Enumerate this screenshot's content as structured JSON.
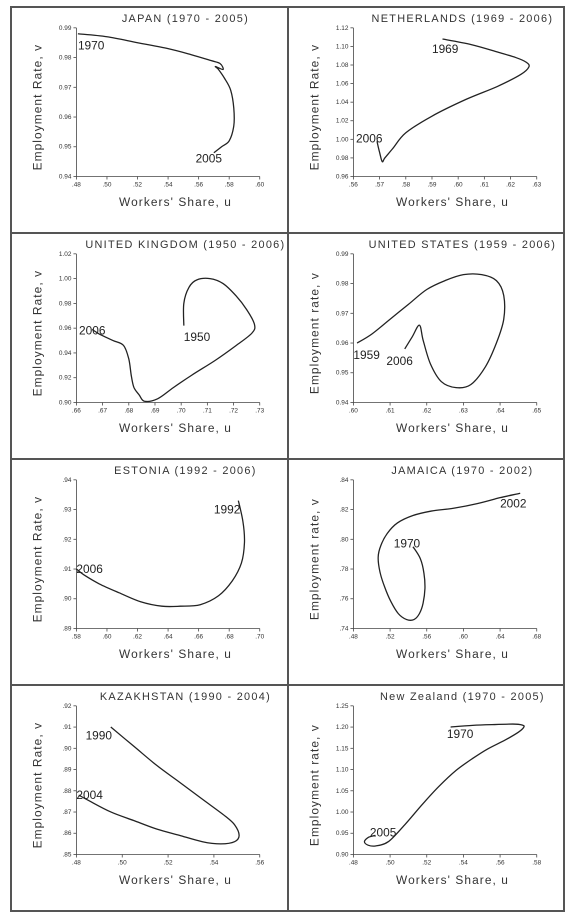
{
  "chart_data": [
    {
      "type": "line",
      "title": "JAPAN (1970 - 2005)",
      "xlabel": "Workers' Share, u",
      "ylabel": "Employment Rate, v",
      "xlim": [
        0.48,
        0.6
      ],
      "ylim": [
        0.94,
        0.99
      ],
      "xticks": [
        {
          "v": 0.48,
          "label": ".48"
        },
        {
          "v": 0.5,
          "label": ".50"
        },
        {
          "v": 0.52,
          "label": ".52"
        },
        {
          "v": 0.54,
          "label": ".54"
        },
        {
          "v": 0.56,
          "label": ".56"
        },
        {
          "v": 0.58,
          "label": ".58"
        },
        {
          "v": 0.6,
          "label": ".60"
        }
      ],
      "yticks": [
        {
          "v": 0.94,
          "label": "0.94"
        },
        {
          "v": 0.95,
          "label": "0.95"
        },
        {
          "v": 0.96,
          "label": "0.96"
        },
        {
          "v": 0.97,
          "label": "0.97"
        },
        {
          "v": 0.98,
          "label": "0.98"
        },
        {
          "v": 0.99,
          "label": "0.99"
        }
      ],
      "series": [
        {
          "x": [
            0.481,
            0.5,
            0.52,
            0.54,
            0.555,
            0.568,
            0.574,
            0.576,
            0.571,
            0.573,
            0.577,
            0.581,
            0.583,
            0.583,
            0.58,
            0.575,
            0.57
          ],
          "y": [
            0.988,
            0.987,
            0.985,
            0.983,
            0.981,
            0.979,
            0.978,
            0.976,
            0.977,
            0.976,
            0.973,
            0.969,
            0.963,
            0.957,
            0.952,
            0.95,
            0.948
          ]
        }
      ],
      "annotations": [
        {
          "text": "1970",
          "x": 0.481,
          "y": 0.984
        },
        {
          "text": "2005",
          "x": 0.558,
          "y": 0.946
        }
      ]
    },
    {
      "type": "line",
      "title": "NETHERLANDS (1969 - 2006)",
      "xlabel": "Workers' Share, u",
      "ylabel": "Employment Rate, v",
      "xlim": [
        0.56,
        0.63
      ],
      "ylim": [
        0.96,
        1.12
      ],
      "xticks": [
        {
          "v": 0.56,
          "label": ".56"
        },
        {
          "v": 0.57,
          "label": ".57"
        },
        {
          "v": 0.58,
          "label": ".58"
        },
        {
          "v": 0.59,
          "label": ".59"
        },
        {
          "v": 0.6,
          "label": ".60"
        },
        {
          "v": 0.61,
          "label": ".61"
        },
        {
          "v": 0.62,
          "label": ".62"
        },
        {
          "v": 0.63,
          "label": ".63"
        }
      ],
      "yticks": [
        {
          "v": 0.96,
          "label": "0.96"
        },
        {
          "v": 0.98,
          "label": "0.98"
        },
        {
          "v": 1.0,
          "label": "1.00"
        },
        {
          "v": 1.02,
          "label": "1.02"
        },
        {
          "v": 1.04,
          "label": "1.04"
        },
        {
          "v": 1.06,
          "label": "1.06"
        },
        {
          "v": 1.08,
          "label": "1.08"
        },
        {
          "v": 1.1,
          "label": "1.10"
        },
        {
          "v": 1.12,
          "label": "1.12"
        }
      ],
      "series": [
        {
          "x": [
            0.594,
            0.605,
            0.615,
            0.622,
            0.626,
            0.627,
            0.624,
            0.615,
            0.603,
            0.59,
            0.58,
            0.575,
            0.572,
            0.571,
            0.57,
            0.569
          ],
          "y": [
            1.108,
            1.102,
            1.094,
            1.088,
            1.083,
            1.078,
            1.07,
            1.057,
            1.043,
            1.025,
            1.007,
            0.99,
            0.98,
            0.976,
            0.986,
            0.998
          ]
        }
      ],
      "annotations": [
        {
          "text": "1969",
          "x": 0.59,
          "y": 1.097
        },
        {
          "text": "2006",
          "x": 0.561,
          "y": 1.001
        }
      ]
    },
    {
      "type": "line",
      "title": "UNITED KINGDOM (1950 - 2006)",
      "xlabel": "Workers' Share, u",
      "ylabel": "Employment Rate, v",
      "xlim": [
        0.66,
        0.73
      ],
      "ylim": [
        0.9,
        1.02
      ],
      "xticks": [
        {
          "v": 0.66,
          "label": ".66"
        },
        {
          "v": 0.67,
          "label": ".67"
        },
        {
          "v": 0.68,
          "label": ".68"
        },
        {
          "v": 0.69,
          "label": ".69"
        },
        {
          "v": 0.7,
          "label": ".70"
        },
        {
          "v": 0.71,
          "label": ".71"
        },
        {
          "v": 0.72,
          "label": ".72"
        },
        {
          "v": 0.73,
          "label": ".73"
        }
      ],
      "yticks": [
        {
          "v": 0.9,
          "label": "0.90"
        },
        {
          "v": 0.92,
          "label": "0.92"
        },
        {
          "v": 0.94,
          "label": "0.94"
        },
        {
          "v": 0.96,
          "label": "0.96"
        },
        {
          "v": 0.98,
          "label": "0.98"
        },
        {
          "v": 1.0,
          "label": "1.00"
        },
        {
          "v": 1.02,
          "label": "1.02"
        }
      ],
      "series": [
        {
          "x": [
            0.701,
            0.701,
            0.703,
            0.706,
            0.711,
            0.716,
            0.721,
            0.725,
            0.728,
            0.727,
            0.721,
            0.713,
            0.704,
            0.697,
            0.691,
            0.686,
            0.684,
            0.682,
            0.681,
            0.68,
            0.678,
            0.674,
            0.669,
            0.666
          ],
          "y": [
            0.962,
            0.98,
            0.993,
            0.999,
            1.0,
            0.996,
            0.986,
            0.975,
            0.963,
            0.956,
            0.946,
            0.934,
            0.922,
            0.912,
            0.903,
            0.901,
            0.906,
            0.912,
            0.921,
            0.935,
            0.946,
            0.95,
            0.955,
            0.959
          ]
        }
      ],
      "annotations": [
        {
          "text": "1950",
          "x": 0.701,
          "y": 0.953
        },
        {
          "text": "2006",
          "x": 0.661,
          "y": 0.958
        }
      ]
    },
    {
      "type": "line",
      "title": "UNITED STATES (1959 - 2006)",
      "xlabel": "Workers' Share, u",
      "ylabel": "Employment rate, v",
      "xlim": [
        0.6,
        0.65
      ],
      "ylim": [
        0.94,
        0.99
      ],
      "xticks": [
        {
          "v": 0.6,
          "label": ".60"
        },
        {
          "v": 0.61,
          "label": ".61"
        },
        {
          "v": 0.62,
          "label": ".62"
        },
        {
          "v": 0.63,
          "label": ".63"
        },
        {
          "v": 0.64,
          "label": ".64"
        },
        {
          "v": 0.65,
          "label": ".65"
        }
      ],
      "yticks": [
        {
          "v": 0.94,
          "label": "0.94"
        },
        {
          "v": 0.95,
          "label": "0.95"
        },
        {
          "v": 0.96,
          "label": "0.96"
        },
        {
          "v": 0.97,
          "label": "0.97"
        },
        {
          "v": 0.98,
          "label": "0.98"
        },
        {
          "v": 0.99,
          "label": "0.99"
        }
      ],
      "series": [
        {
          "x": [
            0.601,
            0.605,
            0.61,
            0.615,
            0.62,
            0.625,
            0.63,
            0.635,
            0.639,
            0.641,
            0.641,
            0.639,
            0.636,
            0.632,
            0.628,
            0.624,
            0.621,
            0.619,
            0.618,
            0.616,
            0.614
          ],
          "y": [
            0.96,
            0.963,
            0.968,
            0.973,
            0.978,
            0.981,
            0.983,
            0.983,
            0.981,
            0.976,
            0.968,
            0.96,
            0.952,
            0.946,
            0.945,
            0.947,
            0.953,
            0.961,
            0.966,
            0.962,
            0.958
          ]
        }
      ],
      "annotations": [
        {
          "text": "1959",
          "x": 0.6,
          "y": 0.956
        },
        {
          "text": "2006",
          "x": 0.609,
          "y": 0.954
        }
      ]
    },
    {
      "type": "line",
      "title": "ESTONIA (1992 - 2006)",
      "xlabel": "Workers' Share, u",
      "ylabel": "Employment Rate, v",
      "xlim": [
        0.58,
        0.7
      ],
      "ylim": [
        0.89,
        0.94
      ],
      "xticks": [
        {
          "v": 0.58,
          "label": ".58"
        },
        {
          "v": 0.6,
          "label": ".60"
        },
        {
          "v": 0.62,
          "label": ".62"
        },
        {
          "v": 0.64,
          "label": ".64"
        },
        {
          "v": 0.66,
          "label": ".66"
        },
        {
          "v": 0.68,
          "label": ".68"
        },
        {
          "v": 0.7,
          "label": ".70"
        }
      ],
      "yticks": [
        {
          "v": 0.89,
          "label": ".89"
        },
        {
          "v": 0.9,
          "label": ".90"
        },
        {
          "v": 0.91,
          "label": ".91"
        },
        {
          "v": 0.92,
          "label": ".92"
        },
        {
          "v": 0.93,
          "label": ".93"
        },
        {
          "v": 0.94,
          "label": ".94"
        }
      ],
      "series": [
        {
          "x": [
            0.686,
            0.689,
            0.69,
            0.688,
            0.682,
            0.673,
            0.661,
            0.648,
            0.636,
            0.622,
            0.608,
            0.595,
            0.585,
            0.58
          ],
          "y": [
            0.933,
            0.926,
            0.919,
            0.912,
            0.906,
            0.901,
            0.898,
            0.8975,
            0.8975,
            0.899,
            0.902,
            0.905,
            0.908,
            0.91
          ]
        }
      ],
      "annotations": [
        {
          "text": "1992",
          "x": 0.67,
          "y": 0.93
        },
        {
          "text": "2006",
          "x": 0.58,
          "y": 0.91
        }
      ]
    },
    {
      "type": "line",
      "title": "JAMAICA (1970 - 2002)",
      "xlabel": "Workers' Share, u",
      "ylabel": "Employment rate, v",
      "xlim": [
        0.48,
        0.68
      ],
      "ylim": [
        0.74,
        0.84
      ],
      "xticks": [
        {
          "v": 0.48,
          "label": ".48"
        },
        {
          "v": 0.52,
          "label": ".52"
        },
        {
          "v": 0.56,
          "label": ".56"
        },
        {
          "v": 0.6,
          "label": ".60"
        },
        {
          "v": 0.64,
          "label": ".64"
        },
        {
          "v": 0.68,
          "label": ".68"
        }
      ],
      "yticks": [
        {
          "v": 0.74,
          "label": ".74"
        },
        {
          "v": 0.76,
          "label": ".76"
        },
        {
          "v": 0.78,
          "label": ".78"
        },
        {
          "v": 0.8,
          "label": ".80"
        },
        {
          "v": 0.82,
          "label": ".82"
        },
        {
          "v": 0.84,
          "label": ".84"
        }
      ],
      "series": [
        {
          "x": [
            0.545,
            0.553,
            0.557,
            0.558,
            0.556,
            0.552,
            0.546,
            0.538,
            0.529,
            0.521,
            0.514,
            0.509,
            0.507,
            0.51,
            0.517,
            0.528,
            0.545,
            0.565,
            0.59,
            0.615,
            0.64,
            0.662
          ],
          "y": [
            0.795,
            0.787,
            0.777,
            0.767,
            0.757,
            0.75,
            0.746,
            0.746,
            0.75,
            0.758,
            0.768,
            0.778,
            0.788,
            0.796,
            0.804,
            0.811,
            0.816,
            0.819,
            0.821,
            0.824,
            0.828,
            0.831
          ]
        }
      ],
      "annotations": [
        {
          "text": "1970",
          "x": 0.524,
          "y": 0.797
        },
        {
          "text": "2002",
          "x": 0.64,
          "y": 0.824
        }
      ]
    },
    {
      "type": "line",
      "title": "KAZAKHSTAN (1990 - 2004)",
      "xlabel": "Workers' Share, u",
      "ylabel": "Employment Rate, v",
      "xlim": [
        0.48,
        0.56
      ],
      "ylim": [
        0.85,
        0.92
      ],
      "xticks": [
        {
          "v": 0.48,
          "label": ".48"
        },
        {
          "v": 0.5,
          "label": ".50"
        },
        {
          "v": 0.52,
          "label": ".52"
        },
        {
          "v": 0.54,
          "label": ".54"
        },
        {
          "v": 0.56,
          "label": ".56"
        }
      ],
      "yticks": [
        {
          "v": 0.85,
          "label": ".85"
        },
        {
          "v": 0.86,
          "label": ".86"
        },
        {
          "v": 0.87,
          "label": ".87"
        },
        {
          "v": 0.88,
          "label": ".88"
        },
        {
          "v": 0.89,
          "label": ".89"
        },
        {
          "v": 0.9,
          "label": ".90"
        },
        {
          "v": 0.91,
          "label": ".91"
        },
        {
          "v": 0.92,
          "label": ".92"
        }
      ],
      "series": [
        {
          "x": [
            0.495,
            0.505,
            0.515,
            0.525,
            0.535,
            0.545,
            0.549,
            0.551,
            0.549,
            0.543,
            0.535,
            0.525,
            0.515,
            0.505,
            0.495,
            0.486,
            0.481
          ],
          "y": [
            0.91,
            0.901,
            0.892,
            0.884,
            0.876,
            0.868,
            0.864,
            0.859,
            0.856,
            0.855,
            0.856,
            0.859,
            0.862,
            0.866,
            0.87,
            0.875,
            0.878
          ]
        }
      ],
      "annotations": [
        {
          "text": "1990",
          "x": 0.484,
          "y": 0.906
        },
        {
          "text": "2004",
          "x": 0.48,
          "y": 0.878
        }
      ]
    },
    {
      "type": "line",
      "title": "New Zealand (1970 - 2005)",
      "xlabel": "Workers' Share, u",
      "ylabel": "Employment rate, v",
      "xlim": [
        0.48,
        0.58
      ],
      "ylim": [
        0.9,
        1.25
      ],
      "xticks": [
        {
          "v": 0.48,
          "label": ".48"
        },
        {
          "v": 0.5,
          "label": ".50"
        },
        {
          "v": 0.52,
          "label": ".52"
        },
        {
          "v": 0.54,
          "label": ".54"
        },
        {
          "v": 0.56,
          "label": ".56"
        },
        {
          "v": 0.58,
          "label": ".58"
        }
      ],
      "yticks": [
        {
          "v": 0.9,
          "label": "0.90"
        },
        {
          "v": 0.95,
          "label": "0.95"
        },
        {
          "v": 1.0,
          "label": "1.00"
        },
        {
          "v": 1.05,
          "label": "1.05"
        },
        {
          "v": 1.1,
          "label": "1.10"
        },
        {
          "v": 1.15,
          "label": "1.15"
        },
        {
          "v": 1.2,
          "label": "1.20"
        },
        {
          "v": 1.25,
          "label": "1.25"
        }
      ],
      "series": [
        {
          "x": [
            0.533,
            0.545,
            0.557,
            0.567,
            0.572,
            0.573,
            0.57,
            0.563,
            0.553,
            0.545,
            0.536,
            0.527,
            0.518,
            0.508,
            0.499,
            0.492,
            0.488,
            0.486,
            0.488,
            0.492
          ],
          "y": [
            1.2,
            1.204,
            1.206,
            1.207,
            1.205,
            1.2,
            1.188,
            1.17,
            1.148,
            1.126,
            1.098,
            1.062,
            1.02,
            0.97,
            0.93,
            0.92,
            0.922,
            0.93,
            0.94,
            0.945
          ]
        }
      ],
      "annotations": [
        {
          "text": "1970",
          "x": 0.531,
          "y": 1.184
        },
        {
          "text": "2005",
          "x": 0.489,
          "y": 0.952
        }
      ]
    }
  ]
}
